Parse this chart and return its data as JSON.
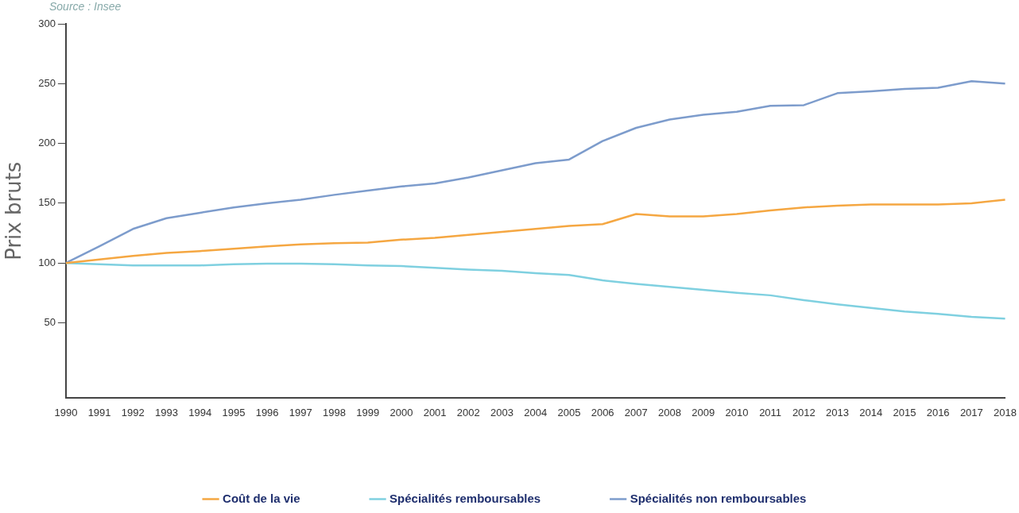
{
  "chart_data": {
    "type": "line",
    "ylabel": "Prix bruts",
    "annotations": [
      "Source : Insee"
    ],
    "categories": [
      "1990",
      "1991",
      "1992",
      "1993",
      "1994",
      "1995",
      "1996",
      "1997",
      "1998",
      "1999",
      "2000",
      "2001",
      "2002",
      "2003",
      "2004",
      "2005",
      "2006",
      "2007",
      "2008",
      "2009",
      "2010",
      "2011",
      "2012",
      "2013",
      "2014",
      "2015",
      "2016",
      "2017",
      "2018"
    ],
    "series": [
      {
        "name": "Coût de la vie",
        "color": "#f5a742",
        "values": [
          100,
          103,
          106,
          108.5,
          110,
          112,
          114,
          115.5,
          116.5,
          117,
          119.5,
          121,
          123.5,
          126,
          128.5,
          131,
          132.5,
          141,
          139,
          139,
          141,
          144,
          146.5,
          148,
          149,
          149,
          149,
          150,
          153
        ]
      },
      {
        "name": "Spécialités remboursables",
        "color": "#7fd0e0",
        "values": [
          100,
          99,
          98,
          98,
          98,
          99,
          99.5,
          99.5,
          99,
          98,
          97.5,
          96,
          94.5,
          93.5,
          91.5,
          90,
          85.5,
          82.5,
          80,
          77.5,
          75,
          73,
          69,
          65.5,
          62.5,
          59.5,
          57.5,
          55,
          53.5
        ]
      },
      {
        "name": "Spécialités non remboursables",
        "color": "#7d9ccc",
        "values": [
          100,
          114,
          128.5,
          137.5,
          142,
          146.5,
          150,
          153,
          157,
          160.5,
          164,
          166.5,
          171.5,
          177.5,
          183.5,
          186.5,
          202,
          213,
          220,
          224,
          226.5,
          231.5,
          232,
          242,
          243.5,
          245.5,
          246.5,
          252,
          250
        ]
      }
    ],
    "ylim": [
      -13,
      300
    ],
    "yticks": [
      50,
      100,
      150,
      200,
      250,
      300
    ],
    "grid": false,
    "legend": "bottom",
    "marker": "none",
    "line_style": "solid"
  }
}
